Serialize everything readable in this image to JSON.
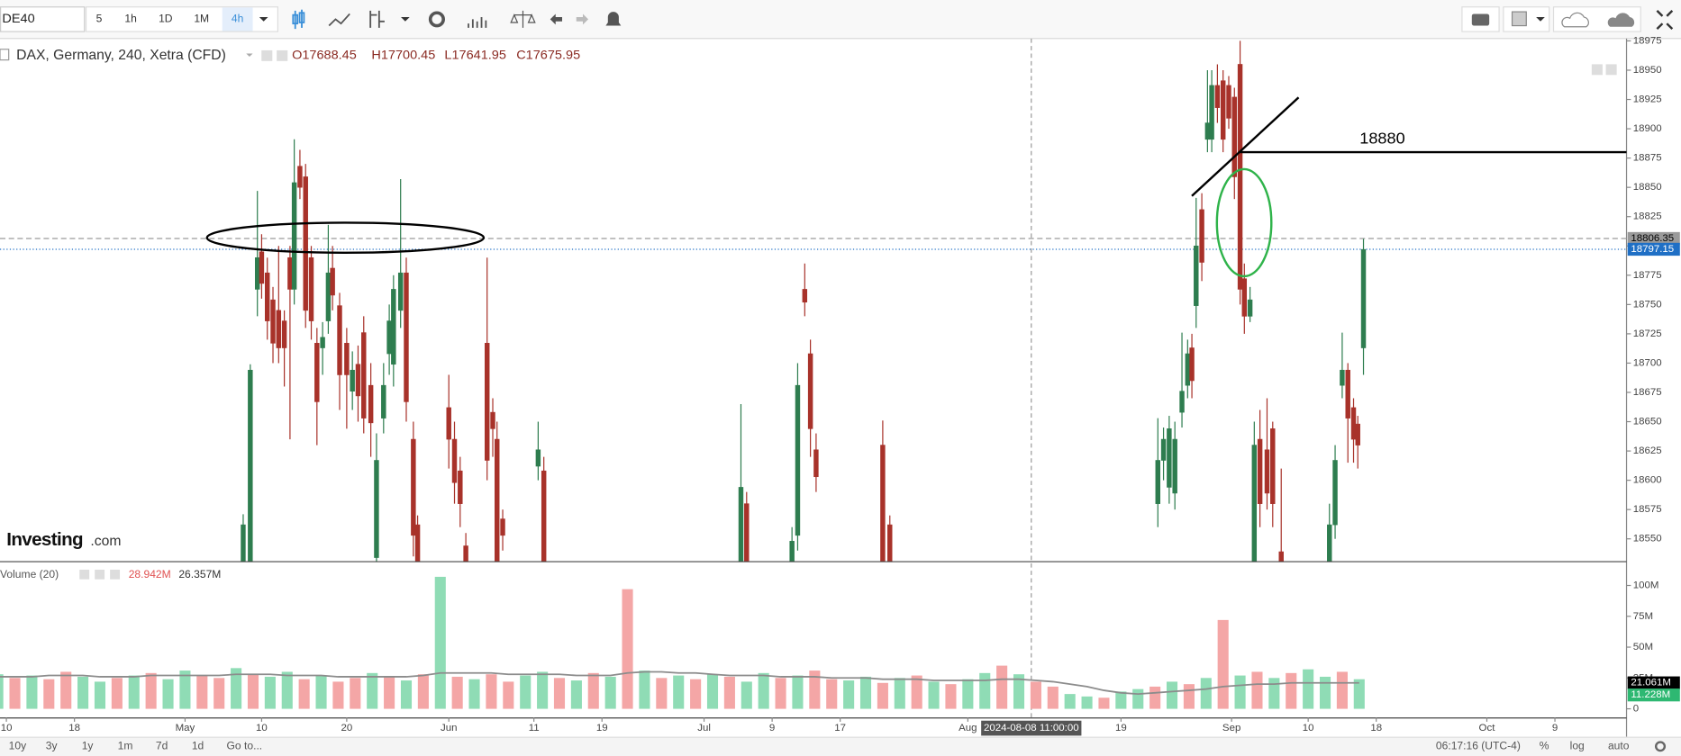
{
  "toolbar": {
    "symbol": "DE40",
    "intervals": [
      "5",
      "1h",
      "1D",
      "1M",
      "4h"
    ]
  },
  "watermark": {
    "brand": "Investing",
    "suffix": ".com"
  },
  "bottom_bar": {
    "ranges": [
      "10y",
      "3y",
      "1y",
      "1m",
      "7d",
      "1d"
    ],
    "goto": "Go to...",
    "clock": "06:17:16 (UTC-4)",
    "options": [
      "%",
      "log",
      "auto"
    ]
  },
  "chart_data": [
    {
      "type": "candlestick",
      "title": "DAX, Germany, 240, Xetra (CFD)",
      "ohlc": [
        "O17688.45",
        "H17700.45",
        "L17641.95",
        "C17675.95"
      ],
      "up_color": "#2e7d4f",
      "down_color": "#a8322a",
      "grid": false,
      "xlim": [
        "2024-04-09 06:00",
        "2024-10-17 10:00"
      ],
      "ylim": [
        18531,
        18977
      ],
      "yticks": [
        18550,
        18575,
        18600,
        18625,
        18650,
        18675,
        18700,
        18725,
        18750,
        18775,
        18800,
        18825,
        18850,
        18875,
        18900,
        18925,
        18950,
        18975
      ],
      "crosshair": "2024-08-08 11:00:00",
      "price_tags": [
        {
          "value": 18806.35,
          "color": "#9a9a9a",
          "text_color": "#000000"
        },
        {
          "value": 18797.15,
          "color": "#1f6fc5",
          "text_color": "#ffffff"
        }
      ],
      "annotations": [
        {
          "value": 18880,
          "x": "2024-09-02 00:00"
        }
      ],
      "x": [
        "2024-05-07 20:00",
        "2024-05-08 16:00",
        "2024-05-09 12:00",
        "2024-05-10 00:00",
        "2024-05-10 16:00",
        "2024-05-11 08:00",
        "2024-05-12 00:00",
        "2024-05-12 16:00",
        "2024-05-13 08:00",
        "2024-05-13 20:00",
        "2024-05-14 12:00",
        "2024-05-15 04:00",
        "2024-05-15 20:00",
        "2024-05-16 12:00",
        "2024-05-17 04:00",
        "2024-05-17 20:00",
        "2024-05-18 08:00",
        "2024-05-19 04:00",
        "2024-05-20 00:00",
        "2024-05-20 16:00",
        "2024-05-21 08:00",
        "2024-05-22 00:00",
        "2024-05-22 20:00",
        "2024-05-23 12:00",
        "2024-05-24 08:00",
        "2024-05-25 00:00",
        "2024-05-25 12:00",
        "2024-05-26 08:00",
        "2024-05-27 00:00",
        "2024-05-27 20:00",
        "2024-05-28 08:00",
        "2024-06-01 00:00",
        "2024-06-01 16:00",
        "2024-06-02 08:00",
        "2024-06-03 00:00",
        "2024-06-05 12:00",
        "2024-06-06 04:00",
        "2024-06-06 16:00",
        "2024-06-07 08:00",
        "2024-06-11 12:00",
        "2024-06-12 04:00",
        "2024-07-05 08:00",
        "2024-07-06 00:00",
        "2024-07-11 08:00",
        "2024-07-12 00:00",
        "2024-07-12 20:00",
        "2024-07-13 12:00",
        "2024-07-14 04:00",
        "2024-07-22 00:00",
        "2024-07-22 20:00",
        "2024-08-23 08:00",
        "2024-08-24 00:00",
        "2024-08-24 16:00",
        "2024-08-25 08:00",
        "2024-08-26 04:00",
        "2024-08-26 20:00",
        "2024-08-27 08:00",
        "2024-08-27 20:00",
        "2024-08-28 12:00",
        "2024-08-29 04:00",
        "2024-08-29 16:00",
        "2024-08-30 08:00",
        "2024-08-31 00:00",
        "2024-08-31 16:00",
        "2024-09-01 08:00",
        "2024-09-02 00:00",
        "2024-09-02 12:00",
        "2024-09-03 04:00",
        "2024-09-03 16:00",
        "2024-09-04 08:00",
        "2024-09-05 04:00",
        "2024-09-05 20:00",
        "2024-09-06 20:00",
        "2024-09-12 12:00",
        "2024-09-13 04:00",
        "2024-09-14 00:00",
        "2024-09-14 16:00",
        "2024-09-15 08:00",
        "2024-09-15 20:00",
        "2024-09-16 12:00"
      ],
      "open": [
        18520,
        18525,
        18763,
        18795,
        18777,
        18754,
        18745,
        18736,
        18790,
        18763,
        18868,
        18859,
        18790,
        18717,
        18713,
        18736,
        18781,
        18749,
        18717,
        18676,
        18699,
        18726,
        18681,
        18534,
        18653,
        18708,
        18699,
        18745,
        18777,
        18635,
        18562,
        18662,
        18635,
        18608,
        18544,
        18717,
        18658,
        18635,
        18567,
        18612,
        18608,
        18525,
        18580,
        18525,
        18553,
        18763,
        18708,
        18626,
        18630,
        18562,
        18580,
        18617,
        18594,
        18589,
        18658,
        18681,
        18713,
        18749,
        18831,
        18891,
        18891,
        18937,
        18941,
        18937,
        18927,
        18955,
        18772,
        18740,
        18525,
        18635,
        18626,
        18644,
        18539,
        18525,
        18562,
        18681,
        18694,
        18662,
        18648,
        18713
      ],
      "high": [
        18571,
        18699,
        18847,
        18810,
        18790,
        18765,
        18800,
        18745,
        18800,
        18891,
        18882,
        18870,
        18800,
        18730,
        18735,
        18818,
        18800,
        18760,
        18730,
        18710,
        18715,
        18740,
        18700,
        18640,
        18700,
        18750,
        18775,
        18857,
        18790,
        18650,
        18570,
        18690,
        18650,
        18620,
        18555,
        18790,
        18670,
        18650,
        18575,
        18650,
        18620,
        18665,
        18590,
        18560,
        18700,
        18785,
        18720,
        18640,
        18651,
        18570,
        18653,
        18645,
        18655,
        18650,
        18726,
        18720,
        18725,
        18841,
        18845,
        18950,
        18950,
        18955,
        18950,
        18945,
        18935,
        18975,
        18785,
        18765,
        18650,
        18660,
        18670,
        18650,
        18610,
        18580,
        18630,
        18726,
        18700,
        18670,
        18655,
        18806
      ],
      "low": [
        18510,
        18515,
        18740,
        18755,
        18720,
        18700,
        18700,
        18680,
        18635,
        18750,
        18840,
        18730,
        18720,
        18630,
        18690,
        18725,
        18745,
        18660,
        18644,
        18660,
        18650,
        18640,
        18620,
        18515,
        18640,
        18690,
        18680,
        18730,
        18650,
        18535,
        18510,
        18610,
        18580,
        18560,
        18510,
        18600,
        18620,
        18510,
        18540,
        18600,
        18510,
        18510,
        18510,
        18510,
        18540,
        18740,
        18620,
        18590,
        18510,
        18510,
        18560,
        18600,
        18580,
        18575,
        18645,
        18670,
        18670,
        18730,
        18770,
        18880,
        18880,
        18905,
        18880,
        18900,
        18840,
        18750,
        18725,
        18735,
        18510,
        18560,
        18575,
        18560,
        18510,
        18510,
        18550,
        18670,
        18615,
        18615,
        18610,
        18690
      ],
      "close": [
        18562,
        18694,
        18790,
        18768,
        18736,
        18717,
        18713,
        18713,
        18763,
        18854,
        18850,
        18745,
        18736,
        18667,
        18722,
        18777,
        18758,
        18690,
        18690,
        18694,
        18672,
        18653,
        18649,
        18617,
        18681,
        18736,
        18763,
        18777,
        18667,
        18553,
        18525,
        18635,
        18598,
        18580,
        18525,
        18617,
        18644,
        18525,
        18553,
        18626,
        18525,
        18594,
        18525,
        18548,
        18681,
        18752,
        18644,
        18603,
        18525,
        18525,
        18617,
        18635,
        18644,
        18635,
        18676,
        18708,
        18685,
        18800,
        18786,
        18905,
        18937,
        18918,
        18891,
        18909,
        18859,
        18763,
        18740,
        18754,
        18630,
        18580,
        18589,
        18580,
        18525,
        18562,
        18617,
        18694,
        18653,
        18635,
        18630,
        18797
      ]
    },
    {
      "type": "bar",
      "title": "Volume (20)",
      "legend_values": [
        "28.942M",
        "26.357M"
      ],
      "xlim": [
        "2024-04-09 06:00",
        "2024-10-17 10:00"
      ],
      "ylim": [
        -7,
        118
      ],
      "yticks": [
        0,
        {
          "value": 25,
          "label": "25M"
        },
        {
          "value": 50,
          "label": "50M"
        },
        {
          "value": 75,
          "label": "75M"
        },
        {
          "value": 100,
          "label": "100M"
        }
      ],
      "xticks": [
        {
          "value": "2024-04-10",
          "label": "10"
        },
        {
          "value": "2024-04-18",
          "label": "18"
        },
        {
          "value": "2024-05-01",
          "label": "May"
        },
        {
          "value": "2024-05-10",
          "label": "10"
        },
        {
          "value": "2024-05-20",
          "label": "20"
        },
        {
          "value": "2024-06-01",
          "label": "Jun"
        },
        {
          "value": "2024-06-11",
          "label": "11"
        },
        {
          "value": "2024-06-19",
          "label": "19"
        },
        {
          "value": "2024-07-01",
          "label": "Jul"
        },
        {
          "value": "2024-07-09",
          "label": "9"
        },
        {
          "value": "2024-07-17",
          "label": "17"
        },
        {
          "value": "2024-08-01",
          "label": "Aug"
        },
        {
          "value": "2024-08-19",
          "label": "19"
        },
        {
          "value": "2024-09-01",
          "label": "Sep"
        },
        {
          "value": "2024-09-10",
          "label": "10"
        },
        {
          "value": "2024-09-18",
          "label": "18"
        },
        {
          "value": "2024-10-01",
          "label": "Oct"
        },
        {
          "value": "2024-10-09",
          "label": "9"
        }
      ],
      "price_tags": [
        {
          "value": 21.061,
          "label": "21.061M",
          "color": "#000000",
          "text_color": "#ffffff"
        },
        {
          "value": 11.228,
          "label": "11.228M",
          "color": "#2eb872",
          "text_color": "#ffffff"
        }
      ],
      "x": [
        "2024-04-09",
        "2024-04-11",
        "2024-04-13",
        "2024-04-15",
        "2024-04-17",
        "2024-04-19",
        "2024-04-21",
        "2024-04-23",
        "2024-04-25",
        "2024-04-27",
        "2024-04-29",
        "2024-05-01",
        "2024-05-03",
        "2024-05-05",
        "2024-05-07",
        "2024-05-09",
        "2024-05-11",
        "2024-05-13",
        "2024-05-15",
        "2024-05-17",
        "2024-05-19",
        "2024-05-21",
        "2024-05-23",
        "2024-05-25",
        "2024-05-27",
        "2024-05-29",
        "2024-05-31",
        "2024-06-02",
        "2024-06-04",
        "2024-06-06",
        "2024-06-08",
        "2024-06-10",
        "2024-06-12",
        "2024-06-14",
        "2024-06-16",
        "2024-06-18",
        "2024-06-20",
        "2024-06-22",
        "2024-06-24",
        "2024-06-26",
        "2024-06-28",
        "2024-06-30",
        "2024-07-02",
        "2024-07-04",
        "2024-07-06",
        "2024-07-08",
        "2024-07-10",
        "2024-07-12",
        "2024-07-14",
        "2024-07-16",
        "2024-07-18",
        "2024-07-20",
        "2024-07-22",
        "2024-07-24",
        "2024-07-26",
        "2024-07-28",
        "2024-07-30",
        "2024-08-01",
        "2024-08-03",
        "2024-08-05",
        "2024-08-07",
        "2024-08-09",
        "2024-08-11",
        "2024-08-13",
        "2024-08-15",
        "2024-08-17",
        "2024-08-19",
        "2024-08-21",
        "2024-08-23",
        "2024-08-25",
        "2024-08-27",
        "2024-08-29",
        "2024-08-31",
        "2024-09-02",
        "2024-09-04",
        "2024-09-06",
        "2024-09-08",
        "2024-09-10",
        "2024-09-12",
        "2024-09-14",
        "2024-09-16"
      ],
      "values": [
        28,
        25,
        27,
        24,
        30,
        26,
        22,
        25,
        27,
        29,
        24,
        31,
        27,
        25,
        33,
        28,
        26,
        30,
        24,
        27,
        22,
        25,
        29,
        26,
        23,
        28,
        107,
        26,
        24,
        28,
        22,
        27,
        30,
        25,
        23,
        29,
        26,
        97,
        31,
        25,
        27,
        24,
        28,
        26,
        22,
        29,
        25,
        27,
        31,
        24,
        23,
        26,
        21,
        25,
        27,
        22,
        20,
        24,
        29,
        35,
        28,
        22,
        18,
        12,
        10,
        9,
        14,
        16,
        18,
        22,
        20,
        25,
        72,
        27,
        30,
        25,
        29,
        32,
        26,
        30,
        24
      ],
      "colors": [
        "#8fdcb5",
        "#f4a6a6",
        "#8fdcb5",
        "#f4a6a6",
        "#f4a6a6",
        "#8fdcb5",
        "#8fdcb5",
        "#f4a6a6",
        "#8fdcb5",
        "#f4a6a6",
        "#8fdcb5",
        "#8fdcb5",
        "#f4a6a6",
        "#f4a6a6",
        "#8fdcb5",
        "#f4a6a6",
        "#8fdcb5",
        "#8fdcb5",
        "#f4a6a6",
        "#8fdcb5",
        "#f4a6a6",
        "#f4a6a6",
        "#8fdcb5",
        "#f4a6a6",
        "#8fdcb5",
        "#f4a6a6",
        "#8fdcb5",
        "#f4a6a6",
        "#8fdcb5",
        "#f4a6a6",
        "#f4a6a6",
        "#8fdcb5",
        "#8fdcb5",
        "#f4a6a6",
        "#8fdcb5",
        "#f4a6a6",
        "#8fdcb5",
        "#f4a6a6",
        "#8fdcb5",
        "#f4a6a6",
        "#8fdcb5",
        "#f4a6a6",
        "#8fdcb5",
        "#f4a6a6",
        "#8fdcb5",
        "#8fdcb5",
        "#f4a6a6",
        "#8fdcb5",
        "#f4a6a6",
        "#f4a6a6",
        "#8fdcb5",
        "#8fdcb5",
        "#f4a6a6",
        "#8fdcb5",
        "#f4a6a6",
        "#8fdcb5",
        "#f4a6a6",
        "#8fdcb5",
        "#8fdcb5",
        "#f4a6a6",
        "#8fdcb5",
        "#f4a6a6",
        "#f4a6a6",
        "#8fdcb5",
        "#8fdcb5",
        "#f4a6a6",
        "#8fdcb5",
        "#8fdcb5",
        "#f4a6a6",
        "#8fdcb5",
        "#f4a6a6",
        "#8fdcb5",
        "#f4a6a6",
        "#8fdcb5",
        "#f4a6a6",
        "#8fdcb5",
        "#f4a6a6",
        "#8fdcb5",
        "#8fdcb5",
        "#f4a6a6",
        "#8fdcb5"
      ],
      "ma": {
        "color": "#8c8c8c",
        "values": [
          26,
          26,
          26,
          27,
          27,
          27,
          26,
          26,
          26,
          27,
          27,
          27,
          27,
          27,
          28,
          28,
          28,
          27,
          27,
          27,
          26,
          26,
          26,
          26,
          26,
          27,
          29,
          29,
          29,
          29,
          28,
          28,
          28,
          28,
          27,
          27,
          27,
          29,
          30,
          30,
          29,
          29,
          28,
          27,
          27,
          27,
          26,
          26,
          26,
          25,
          25,
          25,
          24,
          24,
          24,
          23,
          23,
          23,
          23,
          24,
          24,
          23,
          22,
          20,
          18,
          15,
          13,
          12,
          13,
          14,
          15,
          16,
          18,
          19,
          20,
          20,
          21,
          21,
          21,
          21,
          21
        ]
      }
    }
  ]
}
